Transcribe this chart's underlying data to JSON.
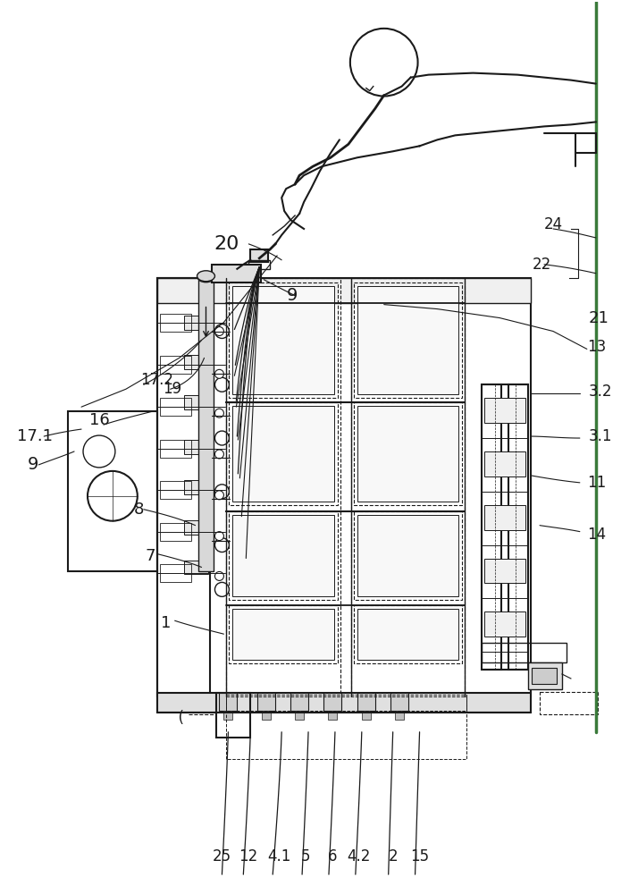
{
  "bg_color": "#ffffff",
  "lc": "#1a1a1a",
  "green": "#3a7a3a",
  "fig_w": 7.14,
  "fig_h": 10.0,
  "dpi": 100
}
